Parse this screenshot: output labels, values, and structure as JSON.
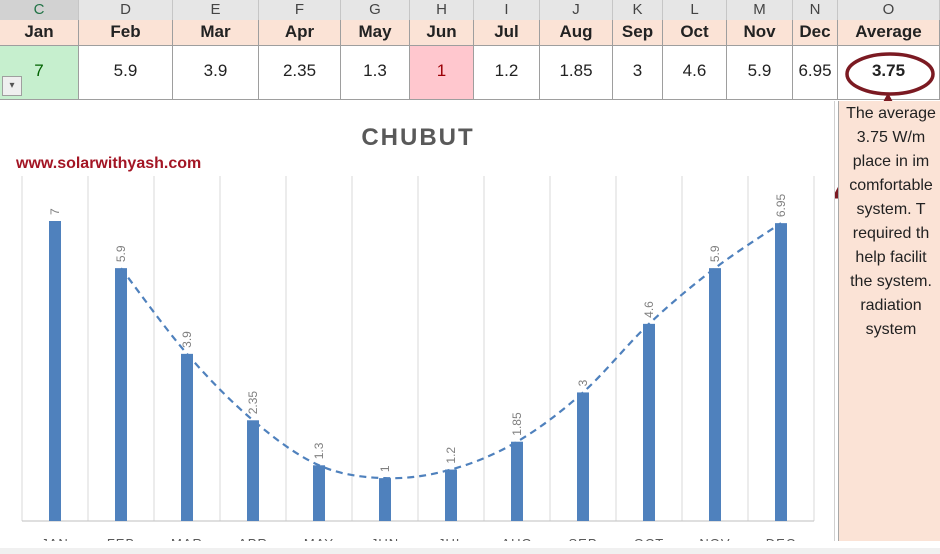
{
  "columns": [
    "C",
    "D",
    "E",
    "F",
    "G",
    "H",
    "I",
    "J",
    "K",
    "L",
    "M",
    "N",
    "O"
  ],
  "months": [
    "Jan",
    "Feb",
    "Mar",
    "Apr",
    "May",
    "Jun",
    "Jul",
    "Aug",
    "Sep",
    "Oct",
    "Nov",
    "Dec"
  ],
  "average_header": "Average",
  "values": [
    "7",
    "5.9",
    "3.9",
    "2.35",
    "1.3",
    "1",
    "1.2",
    "1.85",
    "3",
    "4.6",
    "5.9",
    "6.95"
  ],
  "average_value": "3.75",
  "dropdown_arrow": "▾",
  "side_text": [
    "The average",
    "3.75 W/m",
    "place in im",
    "comfortable",
    "system. T",
    "required th",
    "help facilit",
    "the system.",
    "radiation",
    "system"
  ],
  "colors": {
    "bar": "#4f81bd",
    "trend": "#4f81bd",
    "annotation": "#7b1a22",
    "watermark": "#a31524"
  },
  "chart_data": {
    "type": "bar",
    "title": "CHUBUT",
    "watermark": "www.solarwithyash.com",
    "categories": [
      "JAN",
      "FEB",
      "MAR",
      "APR",
      "MAY",
      "JUN",
      "JUL",
      "AUG",
      "SEP",
      "OCT",
      "NOV",
      "DEC"
    ],
    "values": [
      7,
      5.9,
      3.9,
      2.35,
      1.3,
      1,
      1.2,
      1.85,
      3,
      4.6,
      5.9,
      6.95
    ],
    "data_labels": [
      "7",
      "5.9",
      "3.9",
      "2.35",
      "1.3",
      "1",
      "1.2",
      "1.85",
      "3",
      "4.6",
      "5.9",
      "6.95"
    ],
    "trendline": "polynomial, dashed",
    "ylim": [
      0,
      7.5
    ],
    "grid": "vertical"
  }
}
